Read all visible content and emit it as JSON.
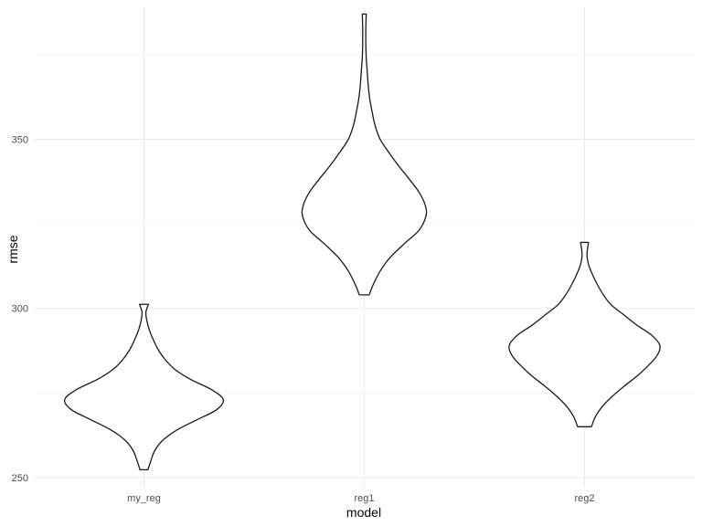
{
  "chart_data": {
    "type": "violin",
    "title": "",
    "xlabel": "model",
    "ylabel": "rmse",
    "categories": [
      "my_reg",
      "reg1",
      "reg2"
    ],
    "ylim": [
      247,
      389
    ],
    "y_ticks": [
      250,
      300,
      350
    ],
    "y_tick_labels": [
      "250",
      "300",
      "350"
    ],
    "grid": true,
    "legend": "none",
    "line_color": "#1a1a1a",
    "series": [
      {
        "category": "my_reg",
        "min": 252.3,
        "max": 301.2,
        "profile": [
          {
            "y": 252.3,
            "w": 0.04
          },
          {
            "y": 255,
            "w": 0.07
          },
          {
            "y": 258,
            "w": 0.11
          },
          {
            "y": 261,
            "w": 0.19
          },
          {
            "y": 264,
            "w": 0.33
          },
          {
            "y": 267,
            "w": 0.53
          },
          {
            "y": 270,
            "w": 0.73
          },
          {
            "y": 273,
            "w": 0.8
          },
          {
            "y": 276,
            "w": 0.68
          },
          {
            "y": 279,
            "w": 0.47
          },
          {
            "y": 282,
            "w": 0.31
          },
          {
            "y": 285,
            "w": 0.21
          },
          {
            "y": 288,
            "w": 0.14
          },
          {
            "y": 291,
            "w": 0.09
          },
          {
            "y": 294,
            "w": 0.05
          },
          {
            "y": 297,
            "w": 0.025
          },
          {
            "y": 299,
            "w": 0.02
          },
          {
            "y": 301.2,
            "w": 0.045
          }
        ]
      },
      {
        "category": "reg1",
        "min": 304,
        "max": 387,
        "profile": [
          {
            "y": 304,
            "w": 0.05
          },
          {
            "y": 307,
            "w": 0.09
          },
          {
            "y": 311,
            "w": 0.16
          },
          {
            "y": 315,
            "w": 0.26
          },
          {
            "y": 319,
            "w": 0.4
          },
          {
            "y": 323,
            "w": 0.55
          },
          {
            "y": 327,
            "w": 0.62
          },
          {
            "y": 330,
            "w": 0.62
          },
          {
            "y": 334,
            "w": 0.56
          },
          {
            "y": 338,
            "w": 0.46
          },
          {
            "y": 342,
            "w": 0.35
          },
          {
            "y": 346,
            "w": 0.25
          },
          {
            "y": 350,
            "w": 0.16
          },
          {
            "y": 354,
            "w": 0.11
          },
          {
            "y": 358,
            "w": 0.08
          },
          {
            "y": 362,
            "w": 0.055
          },
          {
            "y": 366,
            "w": 0.04
          },
          {
            "y": 370,
            "w": 0.03
          },
          {
            "y": 374,
            "w": 0.02
          },
          {
            "y": 378,
            "w": 0.016
          },
          {
            "y": 383,
            "w": 0.016
          },
          {
            "y": 387,
            "w": 0.02
          }
        ]
      },
      {
        "category": "reg2",
        "min": 265,
        "max": 319.5,
        "profile": [
          {
            "y": 265,
            "w": 0.07
          },
          {
            "y": 268,
            "w": 0.11
          },
          {
            "y": 271,
            "w": 0.18
          },
          {
            "y": 274,
            "w": 0.28
          },
          {
            "y": 277,
            "w": 0.4
          },
          {
            "y": 280,
            "w": 0.53
          },
          {
            "y": 283,
            "w": 0.64
          },
          {
            "y": 286,
            "w": 0.73
          },
          {
            "y": 289,
            "w": 0.76
          },
          {
            "y": 292,
            "w": 0.68
          },
          {
            "y": 295,
            "w": 0.53
          },
          {
            "y": 298,
            "w": 0.4
          },
          {
            "y": 301,
            "w": 0.27
          },
          {
            "y": 304,
            "w": 0.19
          },
          {
            "y": 307,
            "w": 0.13
          },
          {
            "y": 310,
            "w": 0.08
          },
          {
            "y": 313,
            "w": 0.04
          },
          {
            "y": 316,
            "w": 0.025
          },
          {
            "y": 319.5,
            "w": 0.04
          }
        ]
      }
    ]
  }
}
